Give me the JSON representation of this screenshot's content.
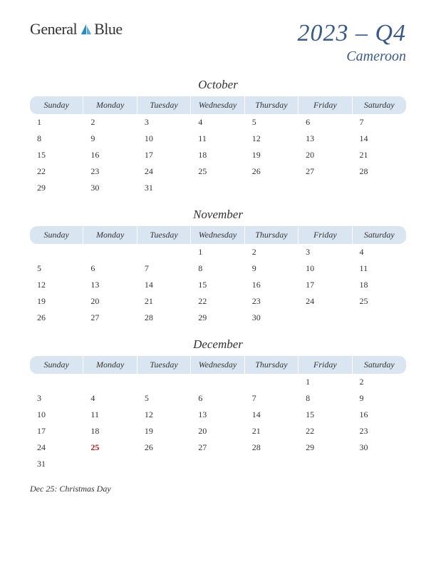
{
  "logo": {
    "text1": "General",
    "text2": "Blue"
  },
  "title": {
    "main": "2023 – Q4",
    "sub": "Cameroon"
  },
  "day_headers": [
    "Sunday",
    "Monday",
    "Tuesday",
    "Wednesday",
    "Thursday",
    "Friday",
    "Saturday"
  ],
  "colors": {
    "header_bg": "#dae5f2",
    "title_color": "#3a5a8a",
    "text_color": "#333333",
    "holiday_color": "#b02020",
    "logo_general": "#4a5a7a",
    "logo_blue": "#2a6ea8",
    "logo_icon": "#2a8ac0"
  },
  "typography": {
    "title_fontsize": 34,
    "subtitle_fontsize": 20,
    "month_fontsize": 17,
    "header_fontsize": 12,
    "cell_fontsize": 12,
    "holiday_list_fontsize": 12,
    "font_family": "Georgia, serif",
    "italic": true
  },
  "months": [
    {
      "name": "October",
      "weeks": [
        [
          "1",
          "2",
          "3",
          "4",
          "5",
          "6",
          "7"
        ],
        [
          "8",
          "9",
          "10",
          "11",
          "12",
          "13",
          "14"
        ],
        [
          "15",
          "16",
          "17",
          "18",
          "19",
          "20",
          "21"
        ],
        [
          "22",
          "23",
          "24",
          "25",
          "26",
          "27",
          "28"
        ],
        [
          "29",
          "30",
          "31",
          "",
          "",
          "",
          ""
        ]
      ],
      "holidays": []
    },
    {
      "name": "November",
      "weeks": [
        [
          "",
          "",
          "",
          "1",
          "2",
          "3",
          "4"
        ],
        [
          "5",
          "6",
          "7",
          "8",
          "9",
          "10",
          "11"
        ],
        [
          "12",
          "13",
          "14",
          "15",
          "16",
          "17",
          "18"
        ],
        [
          "19",
          "20",
          "21",
          "22",
          "23",
          "24",
          "25"
        ],
        [
          "26",
          "27",
          "28",
          "29",
          "30",
          "",
          ""
        ]
      ],
      "holidays": []
    },
    {
      "name": "December",
      "weeks": [
        [
          "",
          "",
          "",
          "",
          "",
          "1",
          "2"
        ],
        [
          "3",
          "4",
          "5",
          "6",
          "7",
          "8",
          "9"
        ],
        [
          "10",
          "11",
          "12",
          "13",
          "14",
          "15",
          "16"
        ],
        [
          "17",
          "18",
          "19",
          "20",
          "21",
          "22",
          "23"
        ],
        [
          "24",
          "25",
          "26",
          "27",
          "28",
          "29",
          "30"
        ],
        [
          "31",
          "",
          "",
          "",
          "",
          "",
          ""
        ]
      ],
      "holidays": [
        {
          "row": 4,
          "col": 1
        }
      ]
    }
  ],
  "holiday_list": [
    "Dec 25: Christmas Day"
  ]
}
